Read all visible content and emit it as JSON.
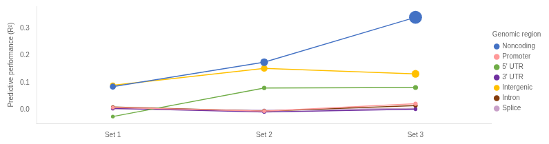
{
  "chart_data": {
    "type": "line",
    "categories": [
      "Set 1",
      "Set 2",
      "Set 3"
    ],
    "ylabel": "Predictive performance (R²)",
    "series": [
      {
        "name": "Noncoding",
        "color": "#4472C4",
        "values": [
          0.085,
          0.175,
          0.34
        ],
        "sizes": [
          9,
          12,
          22
        ]
      },
      {
        "name": "Promoter",
        "color": "#FF9999",
        "values": [
          0.008,
          -0.005,
          0.022
        ],
        "sizes": [
          5,
          5,
          6
        ]
      },
      {
        "name": "5' UTR",
        "color": "#70AD47",
        "values": [
          -0.025,
          0.08,
          0.082
        ],
        "sizes": [
          5,
          6,
          7
        ]
      },
      {
        "name": "3' UTR",
        "color": "#7030A0",
        "values": [
          0.005,
          -0.008,
          0.002
        ],
        "sizes": [
          5,
          5,
          5
        ]
      },
      {
        "name": "Intergenic",
        "color": "#FFC000",
        "values": [
          0.09,
          0.152,
          0.132
        ],
        "sizes": [
          8,
          10,
          12
        ]
      },
      {
        "name": "Intron",
        "color": "#843C0C",
        "values": [
          0.01,
          -0.005,
          0.015
        ],
        "sizes": [
          5,
          6,
          6
        ]
      },
      {
        "name": "Splice",
        "color": "#C8A0C8",
        "values": [
          0.003,
          -0.002,
          0.005
        ],
        "sizes": [
          5,
          5,
          5
        ]
      }
    ],
    "ylim": [
      -0.05,
      0.38
    ],
    "yticks": [
      {
        "value": 0.0,
        "label": "0.0"
      },
      0.1,
      0.2,
      0.3
    ],
    "grid": false,
    "legend": "right",
    "legend_title": "Genomic region",
    "marker": "circle"
  }
}
